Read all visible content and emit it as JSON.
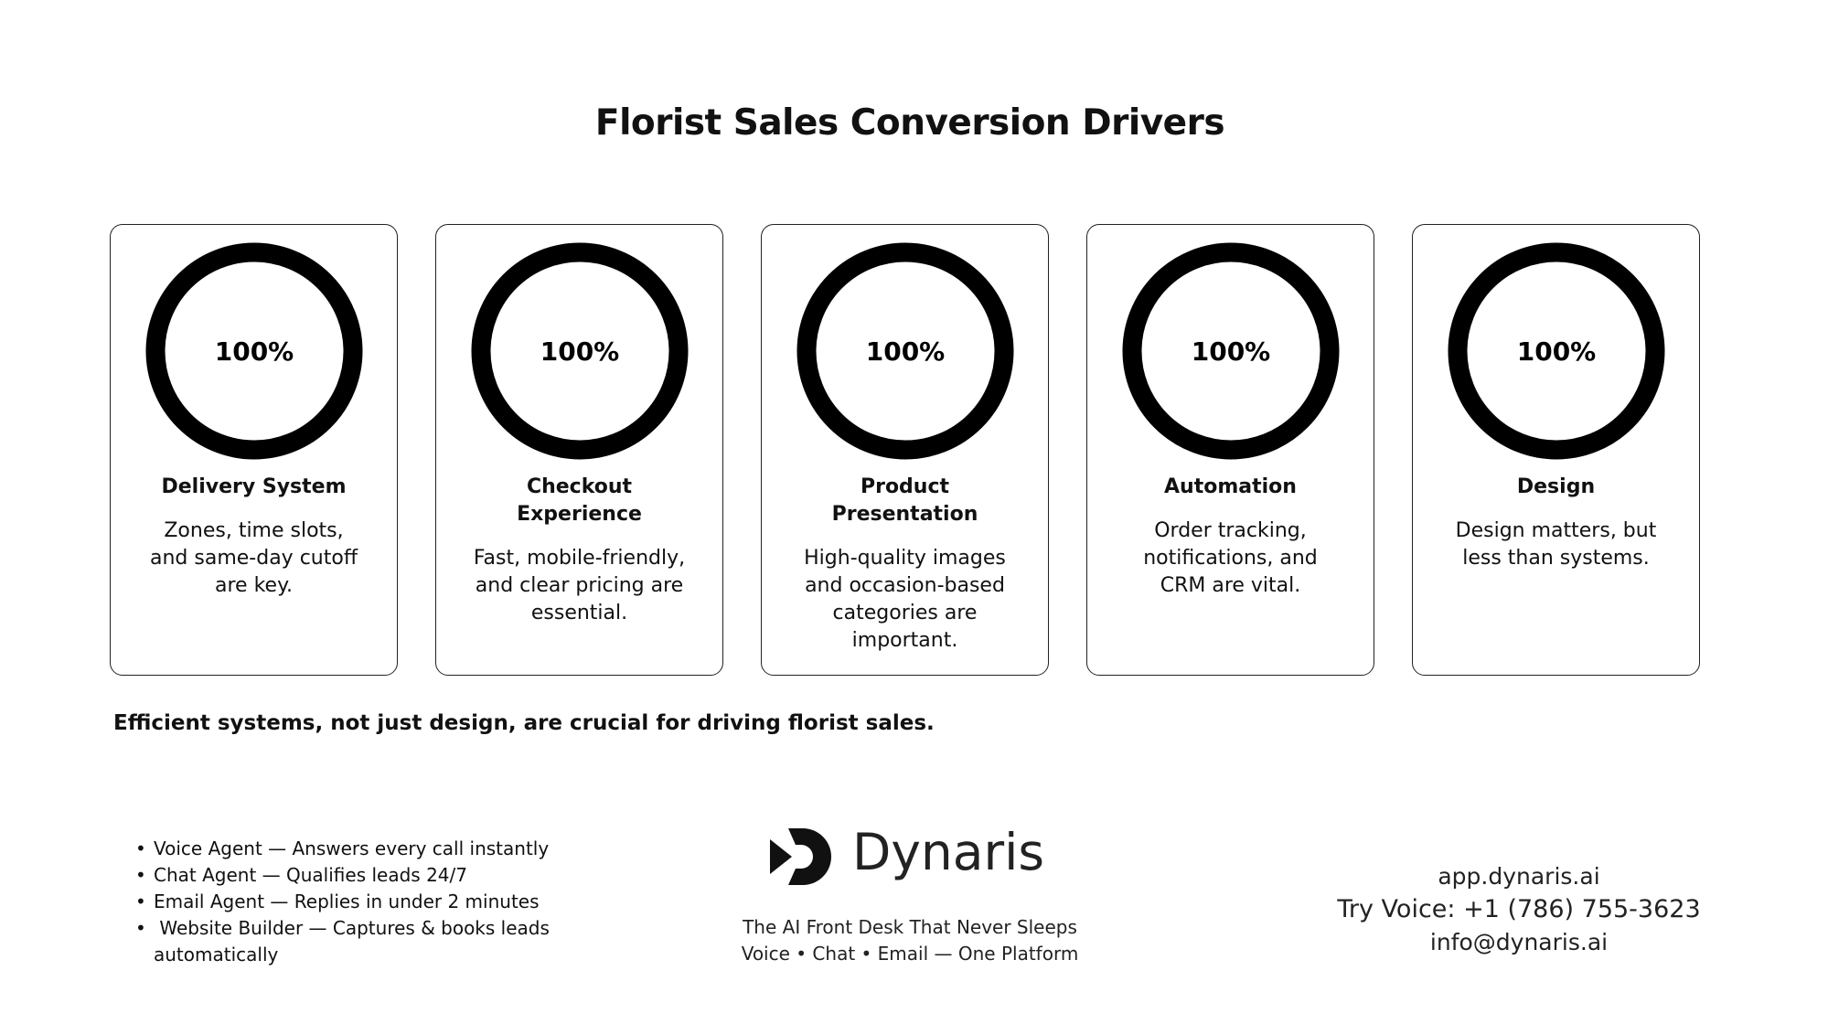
{
  "title": "Florist Sales Conversion Drivers",
  "chart_data": {
    "type": "donut",
    "ylim": [
      0,
      100
    ],
    "values": [
      100,
      100,
      100,
      100,
      100
    ],
    "value_labels": [
      "100%",
      "100%",
      "100%",
      "100%",
      "100%"
    ],
    "color": "#000000",
    "categories": [
      [
        "Delivery System"
      ],
      [
        "Checkout",
        "Experience"
      ],
      [
        "Product",
        "Presentation"
      ],
      [
        "Automation"
      ],
      [
        "Design"
      ]
    ],
    "descriptions": [
      [
        "Zones, time slots,",
        "and same-day cutoff",
        "are key."
      ],
      [
        "Fast, mobile-friendly,",
        "and clear pricing are",
        "essential."
      ],
      [
        "High-quality images",
        "and occasion-based",
        "categories are",
        "important."
      ],
      [
        "Order tracking,",
        "notifications, and",
        "CRM are vital."
      ],
      [
        "Design matters, but",
        "less than systems."
      ]
    ]
  },
  "summary": "Efficient systems, not just design, are crucial for driving florist sales.",
  "footer": {
    "bullets": [
      [
        "Voice Agent — Answers every call instantly"
      ],
      [
        "Chat Agent — Qualifies leads 24/7"
      ],
      [
        "Email Agent — Replies in under 2 minutes"
      ],
      [
        " Website Builder — Captures & books leads",
        "automatically"
      ]
    ],
    "brand": "Dynaris",
    "tagline": [
      "The AI Front Desk That Never Sleeps",
      "Voice • Chat • Email — One Platform"
    ],
    "contact": [
      "app.dynaris.ai",
      "Try Voice: +1 (786) 755-3623",
      "info@dynaris.ai"
    ]
  }
}
